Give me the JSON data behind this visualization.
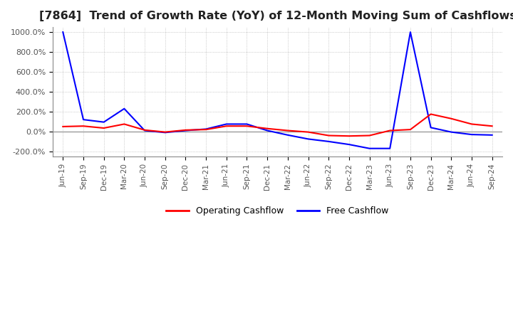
{
  "title": "[7864]  Trend of Growth Rate (YoY) of 12-Month Moving Sum of Cashflows",
  "title_fontsize": 11.5,
  "ylim": [
    -250,
    1050
  ],
  "yticks": [
    -200,
    0,
    200,
    400,
    600,
    800,
    1000
  ],
  "ytick_labels": [
    "-200.0%",
    "0.0%",
    "200.0%",
    "400.0%",
    "600.0%",
    "800.0%",
    "1000.0%"
  ],
  "background_color": "#ffffff",
  "grid_color": "#aaaaaa",
  "x_labels": [
    "Jun-19",
    "Sep-19",
    "Dec-19",
    "Mar-20",
    "Jun-20",
    "Sep-20",
    "Dec-20",
    "Mar-21",
    "Jun-21",
    "Sep-21",
    "Dec-21",
    "Mar-22",
    "Jun-22",
    "Sep-22",
    "Dec-22",
    "Mar-23",
    "Jun-23",
    "Sep-23",
    "Dec-23",
    "Mar-24",
    "Jun-24",
    "Sep-24"
  ],
  "operating_cashflow": [
    50,
    55,
    35,
    75,
    15,
    -5,
    15,
    20,
    55,
    55,
    30,
    10,
    -5,
    -40,
    -45,
    -40,
    10,
    20,
    175,
    130,
    75,
    55
  ],
  "free_cashflow": [
    1000,
    120,
    95,
    230,
    10,
    -10,
    10,
    25,
    75,
    75,
    10,
    -35,
    -75,
    -100,
    -130,
    -170,
    -170,
    1000,
    40,
    -5,
    -30,
    -35
  ],
  "op_color": "#ff0000",
  "fc_color": "#0000ff",
  "line_width": 1.5,
  "legend_op_label": "Operating Cashflow",
  "legend_fc_label": "Free Cashflow"
}
